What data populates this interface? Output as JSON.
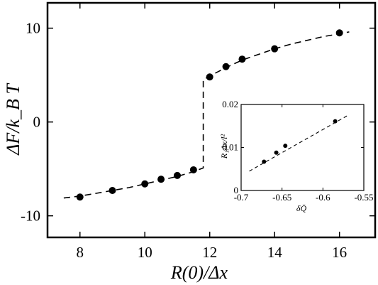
{
  "chart_data": [
    {
      "type": "scatter",
      "title": "",
      "xlabel": "R(0)/Δx",
      "ylabel": "ΔF/k_B T",
      "xlim": [
        7,
        17.1
      ],
      "ylim": [
        -12.3,
        12.7
      ],
      "xticks": [
        "8",
        "10",
        "12",
        "14",
        "16"
      ],
      "yticks": [
        "10",
        "0",
        "-10"
      ],
      "series": [
        {
          "x": [
            8,
            9,
            10,
            10.5,
            11,
            11.5,
            12,
            12.5,
            13,
            14,
            16
          ],
          "y": [
            -8.0,
            -7.3,
            -6.6,
            -6.1,
            -5.7,
            -5.1,
            4.8,
            5.9,
            6.7,
            7.8,
            9.5
          ]
        }
      ],
      "fit_curve": {
        "style": "dashed",
        "x": [
          7.5,
          8,
          8.5,
          9,
          9.5,
          10,
          10.5,
          11,
          11.5,
          11.8,
          11.8,
          12,
          12.5,
          13,
          13.5,
          14,
          14.5,
          15,
          15.5,
          16,
          16.3
        ],
        "y": [
          -8.1,
          -7.9,
          -7.6,
          -7.3,
          -7.0,
          -6.6,
          -6.2,
          -5.8,
          -5.3,
          -4.9,
          4.5,
          4.9,
          5.8,
          6.6,
          7.2,
          7.8,
          8.3,
          8.7,
          9.1,
          9.4,
          9.6
        ]
      }
    },
    {
      "type": "scatter",
      "inset": true,
      "title": "",
      "xlabel": "δQ̄",
      "ylabel": "R₁Δx/l²",
      "xlim": [
        -0.7,
        -0.55
      ],
      "ylim": [
        0,
        0.02
      ],
      "xticks": [
        "-0.7",
        "-0.65",
        "-0.6",
        "-0.55"
      ],
      "yticks": [
        "0",
        "0.01",
        "0.02"
      ],
      "series": [
        {
          "x": [
            -0.672,
            -0.657,
            -0.646,
            -0.585
          ],
          "y": [
            0.0067,
            0.0088,
            0.0104,
            0.0161
          ]
        }
      ],
      "fit_curve": {
        "style": "dashed",
        "x": [
          -0.69,
          -0.57
        ],
        "y": [
          0.0045,
          0.0174
        ]
      }
    }
  ]
}
